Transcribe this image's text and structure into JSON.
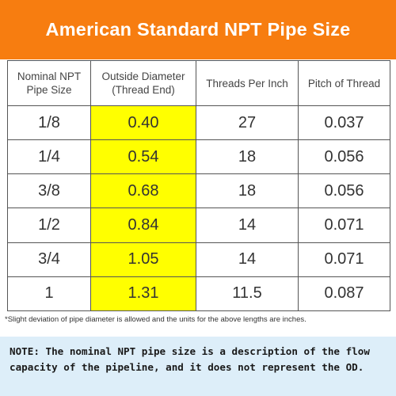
{
  "header": {
    "title": "American Standard NPT Pipe Size"
  },
  "table": {
    "columns": [
      {
        "line1": "Nominal NPT",
        "line2": "Pipe Size"
      },
      {
        "line1": "Outside Diameter",
        "line2": "(Thread End)"
      },
      {
        "line1": "Threads Per Inch",
        "line2": ""
      },
      {
        "line1": "Pitch of Thread",
        "line2": ""
      }
    ],
    "rows": [
      {
        "size": "1/8",
        "od": "0.40",
        "tpi": "27",
        "pitch": "0.037"
      },
      {
        "size": "1/4",
        "od": "0.54",
        "tpi": "18",
        "pitch": "0.056"
      },
      {
        "size": "3/8",
        "od": "0.68",
        "tpi": "18",
        "pitch": "0.056"
      },
      {
        "size": "1/2",
        "od": "0.84",
        "tpi": "14",
        "pitch": "0.071"
      },
      {
        "size": "3/4",
        "od": "1.05",
        "tpi": "14",
        "pitch": "0.071"
      },
      {
        "size": "1",
        "od": "1.31",
        "tpi": "11.5",
        "pitch": "0.087"
      }
    ]
  },
  "footnote": "*Slight deviation of pipe diameter is allowed and the units for the above lengths are inches.",
  "note": {
    "text": "NOTE: The nominal NPT pipe size is a description of the flow capacity of the pipeline, and it does not represent the OD."
  },
  "colors": {
    "header_bg": "#f77d10",
    "highlight": "#ffff00",
    "note_bg": "#ddeef9"
  }
}
